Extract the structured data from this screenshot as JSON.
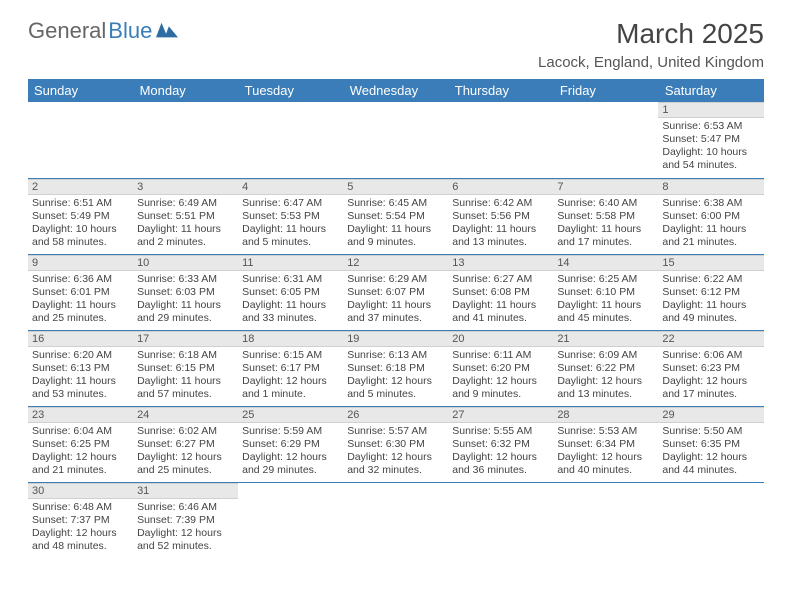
{
  "brand": {
    "part1": "General",
    "part2": "Blue"
  },
  "title": "March 2025",
  "location": "Lacock, England, United Kingdom",
  "colors": {
    "header_bg": "#3a7db8",
    "daynum_bg": "#e8e8e8",
    "text": "#444444"
  },
  "weekdays": [
    "Sunday",
    "Monday",
    "Tuesday",
    "Wednesday",
    "Thursday",
    "Friday",
    "Saturday"
  ],
  "weeks": [
    [
      null,
      null,
      null,
      null,
      null,
      null,
      {
        "n": "1",
        "sunrise": "Sunrise: 6:53 AM",
        "sunset": "Sunset: 5:47 PM",
        "daylight": "Daylight: 10 hours and 54 minutes."
      }
    ],
    [
      {
        "n": "2",
        "sunrise": "Sunrise: 6:51 AM",
        "sunset": "Sunset: 5:49 PM",
        "daylight": "Daylight: 10 hours and 58 minutes."
      },
      {
        "n": "3",
        "sunrise": "Sunrise: 6:49 AM",
        "sunset": "Sunset: 5:51 PM",
        "daylight": "Daylight: 11 hours and 2 minutes."
      },
      {
        "n": "4",
        "sunrise": "Sunrise: 6:47 AM",
        "sunset": "Sunset: 5:53 PM",
        "daylight": "Daylight: 11 hours and 5 minutes."
      },
      {
        "n": "5",
        "sunrise": "Sunrise: 6:45 AM",
        "sunset": "Sunset: 5:54 PM",
        "daylight": "Daylight: 11 hours and 9 minutes."
      },
      {
        "n": "6",
        "sunrise": "Sunrise: 6:42 AM",
        "sunset": "Sunset: 5:56 PM",
        "daylight": "Daylight: 11 hours and 13 minutes."
      },
      {
        "n": "7",
        "sunrise": "Sunrise: 6:40 AM",
        "sunset": "Sunset: 5:58 PM",
        "daylight": "Daylight: 11 hours and 17 minutes."
      },
      {
        "n": "8",
        "sunrise": "Sunrise: 6:38 AM",
        "sunset": "Sunset: 6:00 PM",
        "daylight": "Daylight: 11 hours and 21 minutes."
      }
    ],
    [
      {
        "n": "9",
        "sunrise": "Sunrise: 6:36 AM",
        "sunset": "Sunset: 6:01 PM",
        "daylight": "Daylight: 11 hours and 25 minutes."
      },
      {
        "n": "10",
        "sunrise": "Sunrise: 6:33 AM",
        "sunset": "Sunset: 6:03 PM",
        "daylight": "Daylight: 11 hours and 29 minutes."
      },
      {
        "n": "11",
        "sunrise": "Sunrise: 6:31 AM",
        "sunset": "Sunset: 6:05 PM",
        "daylight": "Daylight: 11 hours and 33 minutes."
      },
      {
        "n": "12",
        "sunrise": "Sunrise: 6:29 AM",
        "sunset": "Sunset: 6:07 PM",
        "daylight": "Daylight: 11 hours and 37 minutes."
      },
      {
        "n": "13",
        "sunrise": "Sunrise: 6:27 AM",
        "sunset": "Sunset: 6:08 PM",
        "daylight": "Daylight: 11 hours and 41 minutes."
      },
      {
        "n": "14",
        "sunrise": "Sunrise: 6:25 AM",
        "sunset": "Sunset: 6:10 PM",
        "daylight": "Daylight: 11 hours and 45 minutes."
      },
      {
        "n": "15",
        "sunrise": "Sunrise: 6:22 AM",
        "sunset": "Sunset: 6:12 PM",
        "daylight": "Daylight: 11 hours and 49 minutes."
      }
    ],
    [
      {
        "n": "16",
        "sunrise": "Sunrise: 6:20 AM",
        "sunset": "Sunset: 6:13 PM",
        "daylight": "Daylight: 11 hours and 53 minutes."
      },
      {
        "n": "17",
        "sunrise": "Sunrise: 6:18 AM",
        "sunset": "Sunset: 6:15 PM",
        "daylight": "Daylight: 11 hours and 57 minutes."
      },
      {
        "n": "18",
        "sunrise": "Sunrise: 6:15 AM",
        "sunset": "Sunset: 6:17 PM",
        "daylight": "Daylight: 12 hours and 1 minute."
      },
      {
        "n": "19",
        "sunrise": "Sunrise: 6:13 AM",
        "sunset": "Sunset: 6:18 PM",
        "daylight": "Daylight: 12 hours and 5 minutes."
      },
      {
        "n": "20",
        "sunrise": "Sunrise: 6:11 AM",
        "sunset": "Sunset: 6:20 PM",
        "daylight": "Daylight: 12 hours and 9 minutes."
      },
      {
        "n": "21",
        "sunrise": "Sunrise: 6:09 AM",
        "sunset": "Sunset: 6:22 PM",
        "daylight": "Daylight: 12 hours and 13 minutes."
      },
      {
        "n": "22",
        "sunrise": "Sunrise: 6:06 AM",
        "sunset": "Sunset: 6:23 PM",
        "daylight": "Daylight: 12 hours and 17 minutes."
      }
    ],
    [
      {
        "n": "23",
        "sunrise": "Sunrise: 6:04 AM",
        "sunset": "Sunset: 6:25 PM",
        "daylight": "Daylight: 12 hours and 21 minutes."
      },
      {
        "n": "24",
        "sunrise": "Sunrise: 6:02 AM",
        "sunset": "Sunset: 6:27 PM",
        "daylight": "Daylight: 12 hours and 25 minutes."
      },
      {
        "n": "25",
        "sunrise": "Sunrise: 5:59 AM",
        "sunset": "Sunset: 6:29 PM",
        "daylight": "Daylight: 12 hours and 29 minutes."
      },
      {
        "n": "26",
        "sunrise": "Sunrise: 5:57 AM",
        "sunset": "Sunset: 6:30 PM",
        "daylight": "Daylight: 12 hours and 32 minutes."
      },
      {
        "n": "27",
        "sunrise": "Sunrise: 5:55 AM",
        "sunset": "Sunset: 6:32 PM",
        "daylight": "Daylight: 12 hours and 36 minutes."
      },
      {
        "n": "28",
        "sunrise": "Sunrise: 5:53 AM",
        "sunset": "Sunset: 6:34 PM",
        "daylight": "Daylight: 12 hours and 40 minutes."
      },
      {
        "n": "29",
        "sunrise": "Sunrise: 5:50 AM",
        "sunset": "Sunset: 6:35 PM",
        "daylight": "Daylight: 12 hours and 44 minutes."
      }
    ],
    [
      {
        "n": "30",
        "sunrise": "Sunrise: 6:48 AM",
        "sunset": "Sunset: 7:37 PM",
        "daylight": "Daylight: 12 hours and 48 minutes."
      },
      {
        "n": "31",
        "sunrise": "Sunrise: 6:46 AM",
        "sunset": "Sunset: 7:39 PM",
        "daylight": "Daylight: 12 hours and 52 minutes."
      },
      null,
      null,
      null,
      null,
      null
    ]
  ]
}
